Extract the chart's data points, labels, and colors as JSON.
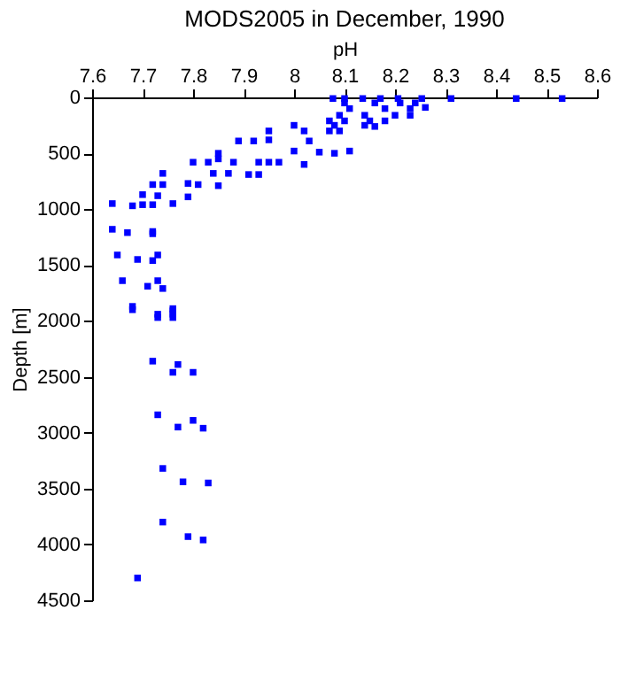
{
  "chart_data": {
    "type": "scatter",
    "title": "MODS2005 in December, 1990",
    "xlabel": "pH",
    "ylabel": "Depth [m]",
    "x": [
      8.077,
      8.1,
      8.136,
      8.171,
      8.206,
      8.253,
      8.311,
      8.44,
      8.531,
      8.1,
      8.16,
      8.21,
      8.24,
      8.11,
      8.18,
      8.23,
      8.26,
      8.09,
      8.14,
      8.2,
      8.23,
      8.07,
      8.1,
      8.15,
      8.18,
      8.0,
      8.08,
      8.14,
      8.16,
      7.95,
      8.02,
      8.07,
      8.09,
      7.89,
      7.92,
      7.95,
      8.03,
      8.0,
      8.05,
      8.08,
      8.11,
      7.85,
      7.83,
      7.85,
      7.8,
      7.88,
      7.93,
      7.95,
      7.97,
      8.02,
      7.84,
      7.87,
      7.91,
      7.93,
      7.74,
      7.72,
      7.74,
      7.79,
      7.81,
      7.79,
      7.85,
      7.7,
      7.73,
      7.72,
      7.7,
      7.64,
      7.68,
      7.76,
      7.64,
      7.67,
      7.72,
      7.72,
      7.65,
      7.69,
      7.72,
      7.73,
      7.66,
      7.71,
      7.73,
      7.74,
      7.68,
      7.73,
      7.76,
      7.76,
      7.68,
      7.73,
      7.76,
      7.76,
      7.72,
      7.77,
      7.76,
      7.8,
      7.73,
      7.8,
      7.77,
      7.82,
      7.74,
      7.78,
      7.83,
      7.74,
      7.79,
      7.82,
      7.69
    ],
    "values": [
      10,
      10,
      10,
      10,
      10,
      10,
      10,
      10,
      10,
      50,
      50,
      50,
      50,
      100,
      100,
      100,
      90,
      160,
      160,
      160,
      160,
      210,
      210,
      210,
      210,
      250,
      250,
      250,
      260,
      300,
      300,
      300,
      300,
      390,
      390,
      380,
      390,
      480,
      490,
      500,
      480,
      500,
      580,
      550,
      580,
      580,
      580,
      580,
      580,
      600,
      680,
      680,
      690,
      690,
      680,
      780,
      780,
      770,
      780,
      890,
      790,
      870,
      880,
      960,
      960,
      950,
      970,
      950,
      1180,
      1210,
      1200,
      1220,
      1410,
      1450,
      1460,
      1410,
      1640,
      1690,
      1640,
      1710,
      1870,
      1940,
      1890,
      1940,
      1900,
      1970,
      1910,
      1970,
      2360,
      2390,
      2460,
      2460,
      2840,
      2890,
      2950,
      2960,
      3320,
      3440,
      3450,
      3800,
      3930,
      3960,
      4300
    ],
    "color": "#0000ff",
    "marker": "square",
    "xlim": [
      7.6,
      8.6
    ],
    "xticks": [
      7.6,
      7.7,
      7.8,
      7.9,
      8,
      8.1,
      8.2,
      8.3,
      8.4,
      8.5,
      8.6
    ],
    "ylim": [
      4500,
      0
    ],
    "yticks": [
      0,
      500,
      1000,
      1500,
      2000,
      2500,
      3000,
      3500,
      4000,
      4500
    ],
    "grid": false
  }
}
